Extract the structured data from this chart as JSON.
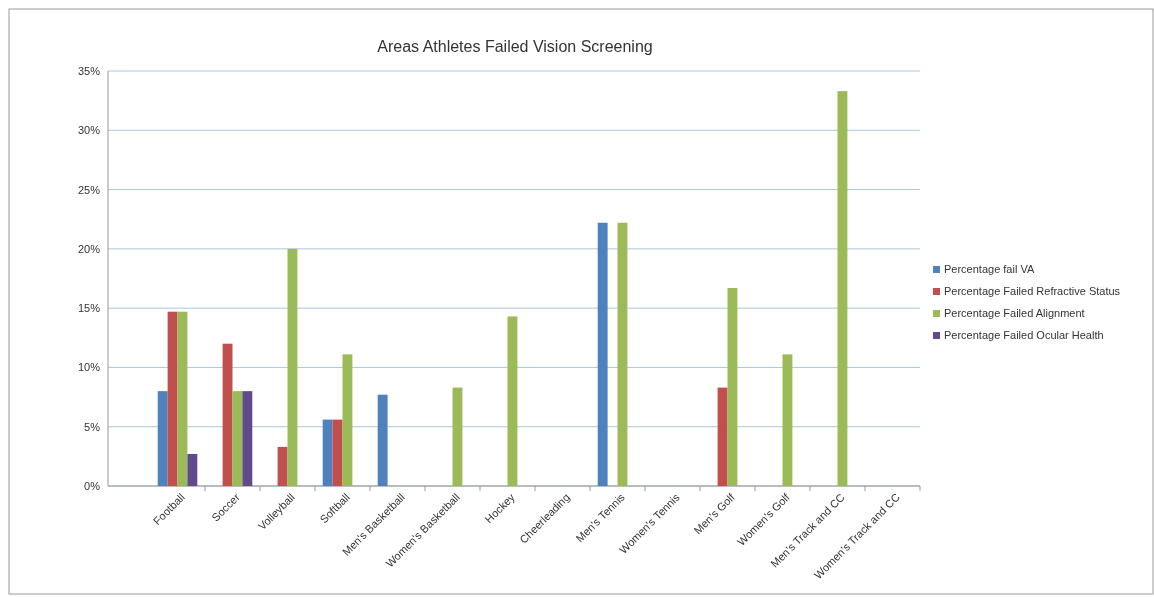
{
  "chart_data": {
    "type": "bar",
    "title": "Areas Athletes Failed Vision Screening",
    "categories": [
      "Football",
      "Soccer",
      "Volleyball",
      "Softball",
      "Men's Basketball",
      "Women's Basketball",
      "Hockey",
      "Cheerleading",
      "Men's Tennis",
      "Women's Tennis",
      "Men's Golf",
      "Women's Golf",
      "Men's Track and CC",
      "Women's Track and CC"
    ],
    "series": [
      {
        "name": "Percentage fail VA",
        "color": "#4f81bd",
        "values": [
          8.0,
          0,
          0,
          5.6,
          7.7,
          0,
          0,
          0,
          22.2,
          0,
          0,
          0,
          0,
          0
        ]
      },
      {
        "name": "Percentage Failed Refractive Status",
        "color": "#c0504d",
        "values": [
          14.7,
          12.0,
          3.3,
          5.6,
          0,
          0,
          0,
          0,
          0,
          0,
          8.3,
          0,
          0,
          0
        ]
      },
      {
        "name": "Percentage Failed Alignment",
        "color": "#9bbb59",
        "values": [
          14.7,
          8.0,
          20.0,
          11.1,
          0,
          8.3,
          14.3,
          0,
          22.2,
          0,
          16.7,
          11.1,
          33.3,
          0
        ]
      },
      {
        "name": "Percentage Failed Ocular Health",
        "color": "#604a8b",
        "values": [
          2.7,
          8.0,
          0,
          0,
          0,
          0,
          0,
          0,
          0,
          0,
          0,
          0,
          0,
          0
        ]
      }
    ],
    "ylim": [
      0,
      35
    ],
    "yticks": [
      {
        "value": 0,
        "label": "0%"
      },
      {
        "value": 5,
        "label": "5%"
      },
      {
        "value": 10,
        "label": "10%"
      },
      {
        "value": 15,
        "label": "15%"
      },
      {
        "value": 20,
        "label": "20%"
      },
      {
        "value": 25,
        "label": "25%"
      },
      {
        "value": 30,
        "label": "30%"
      },
      {
        "value": 35,
        "label": "35%"
      }
    ],
    "grid": "y",
    "legend": "right"
  }
}
